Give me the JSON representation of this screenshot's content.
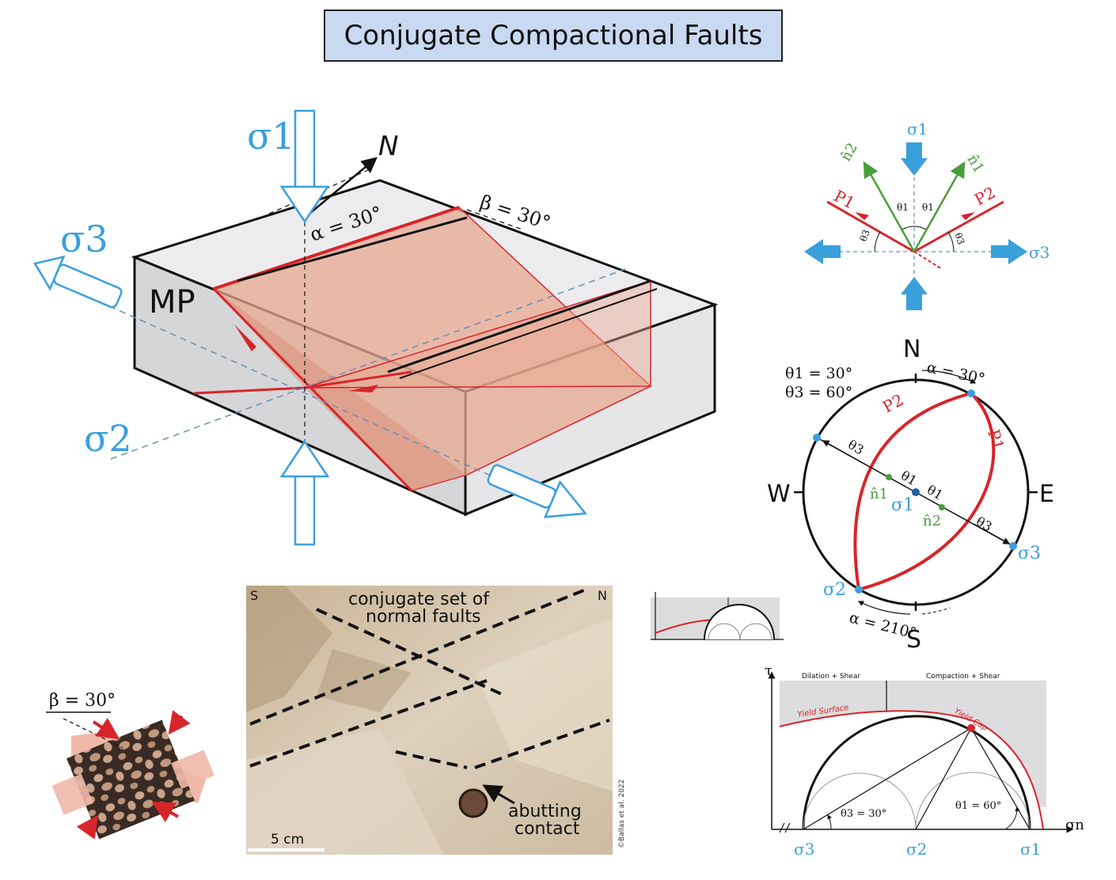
{
  "title": "Conjugate Compactional Faults",
  "block_diagram": {
    "sigma1": "σ1",
    "sigma2": "σ2",
    "sigma3": "σ3",
    "north": "N",
    "mp": "MP",
    "alpha": "α = 30°",
    "beta": "β = 30°"
  },
  "plane_diagram": {
    "sigma1": "σ1",
    "sigma3": "σ3",
    "n1": "n̂1",
    "n2": "n̂2",
    "p1": "P1",
    "p2": "P2",
    "theta1a": "θ1",
    "theta1b": "θ1",
    "theta3a": "θ3",
    "theta3b": "θ3"
  },
  "stereonet": {
    "N": "N",
    "S": "S",
    "E": "E",
    "W": "W",
    "theta1_eq": "θ1 = 30°",
    "theta3_eq": "θ3 = 60°",
    "alpha_top": "α = 30°",
    "alpha_bottom": "α = 210°",
    "p1": "P1",
    "p2": "P2",
    "sigma1": "σ1",
    "sigma2": "σ2",
    "sigma3": "σ3",
    "n1": "n̂1",
    "n2": "n̂2",
    "theta3a": "θ3",
    "theta3b": "θ3",
    "theta1a": "θ1",
    "theta1b": "θ1"
  },
  "photo": {
    "south": "S",
    "north": "N",
    "caption1": "conjugate set of",
    "caption2": "normal faults",
    "abut1": "abutting",
    "abut2": "contact",
    "scale": "5 cm",
    "credit": "©Ballas et al. 2022"
  },
  "sample": {
    "beta": "β = 30°"
  },
  "mohr": {
    "tau": "τ",
    "sigma_n": "σn",
    "dilation": "Dilation + Shear",
    "compaction": "Compaction + Shear",
    "yield_surface": "Yield Surface",
    "yield_cap": "Yield Cap",
    "theta3": "θ3 = 30°",
    "theta1": "θ1 = 60°",
    "sigma3": "σ3",
    "sigma2": "σ2",
    "sigma1": "σ1"
  },
  "colors": {
    "blue": "#3aa0dc",
    "red": "#d8242b",
    "green": "#4a9e3a",
    "fault_fill": "#e8a890"
  }
}
